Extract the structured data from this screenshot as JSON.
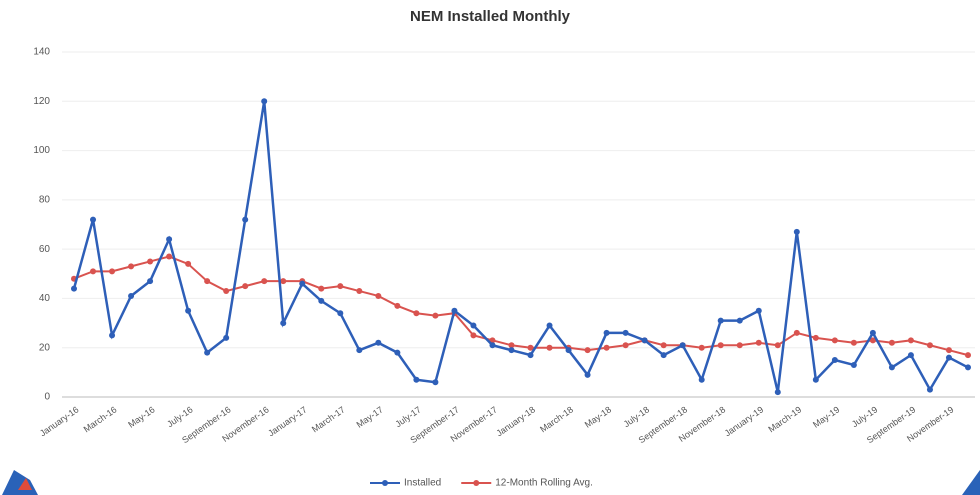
{
  "chart_data": {
    "type": "line",
    "title": "NEM Installed Monthly",
    "categories": [
      "January-16",
      null,
      "March-16",
      null,
      "May-16",
      null,
      "July-16",
      null,
      "September-16",
      null,
      "November-16",
      null,
      "January-17",
      null,
      "March-17",
      null,
      "May-17",
      null,
      "July-17",
      null,
      "September-17",
      null,
      "November-17",
      null,
      "January-18",
      null,
      "March-18",
      null,
      "May-18",
      null,
      "July-18",
      null,
      "September-18",
      null,
      "November-18",
      null,
      "January-19",
      null,
      "March-19",
      null,
      "May-19",
      null,
      "July-19",
      null,
      "September-19",
      null,
      "November-19",
      null
    ],
    "series": [
      {
        "name": "Installed",
        "color": "#2e5fb8",
        "values": [
          44,
          72,
          25,
          41,
          47,
          64,
          35,
          18,
          24,
          72,
          120,
          30,
          46,
          39,
          34,
          19,
          22,
          18,
          7,
          6,
          35,
          29,
          21,
          19,
          17,
          29,
          19,
          9,
          26,
          26,
          23,
          17,
          21,
          7,
          31,
          31,
          35,
          2,
          67,
          7,
          15,
          13,
          26,
          12,
          17,
          3,
          16,
          12
        ]
      },
      {
        "name": "12-Month Rolling Avg.",
        "color": "#d9534f",
        "values": [
          48,
          51,
          51,
          53,
          55,
          57,
          54,
          47,
          43,
          45,
          47,
          47,
          47,
          44,
          45,
          43,
          41,
          37,
          34,
          33,
          34,
          25,
          23,
          21,
          20,
          20,
          20,
          19,
          20,
          21,
          23,
          21,
          21,
          20,
          21,
          21,
          22,
          21,
          26,
          24,
          23,
          22,
          23,
          22,
          23,
          21,
          19,
          17
        ]
      }
    ],
    "ylim": [
      0,
      140
    ],
    "yticks": [
      0,
      20,
      40,
      60,
      80,
      100,
      120,
      140
    ],
    "grid": true,
    "legend": "bottom"
  }
}
